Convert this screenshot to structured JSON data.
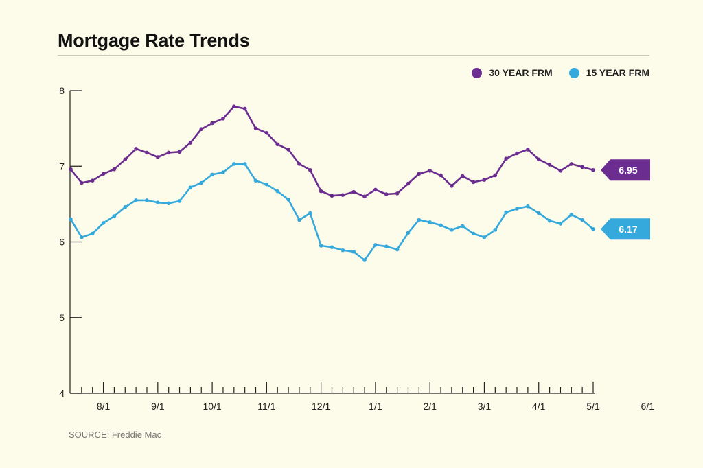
{
  "title": "Mortgage Rate Trends",
  "source": "SOURCE: Freddie Mac",
  "chart_data": {
    "type": "line",
    "title": "Mortgage Rate Trends",
    "xlabel": "",
    "ylabel": "",
    "ylim": [
      4,
      8
    ],
    "yticks": [
      4,
      5,
      6,
      7,
      8
    ],
    "x_tick_labels": [
      {
        "label": "8/1",
        "index": 3
      },
      {
        "label": "9/1",
        "index": 8
      },
      {
        "label": "10/1",
        "index": 13
      },
      {
        "label": "11/1",
        "index": 18
      },
      {
        "label": "12/1",
        "index": 23
      },
      {
        "label": "1/1",
        "index": 28
      },
      {
        "label": "2/1",
        "index": 33
      },
      {
        "label": "3/1",
        "index": 38
      },
      {
        "label": "4/1",
        "index": 43
      },
      {
        "label": "5/1",
        "index": 48
      },
      {
        "label": "6/1",
        "index": 53
      }
    ],
    "legend_position": "top-right",
    "grid": false,
    "series": [
      {
        "name": "30 YEAR FRM",
        "color": "#6b2d90",
        "end_label": "6.95",
        "values": [
          6.96,
          6.78,
          6.81,
          6.9,
          6.96,
          7.09,
          7.23,
          7.18,
          7.12,
          7.18,
          7.19,
          7.31,
          7.49,
          7.57,
          7.63,
          7.79,
          7.76,
          7.5,
          7.44,
          7.29,
          7.22,
          7.03,
          6.95,
          6.67,
          6.61,
          6.62,
          6.66,
          6.6,
          6.69,
          6.63,
          6.64,
          6.77,
          6.9,
          6.94,
          6.88,
          6.74,
          6.87,
          6.79,
          6.82,
          6.88,
          7.1,
          7.17,
          7.22,
          7.09,
          7.02,
          6.94,
          7.03,
          6.99,
          6.95
        ]
      },
      {
        "name": "15 YEAR FRM",
        "color": "#35a9dc",
        "end_label": "6.17",
        "values": [
          6.3,
          6.06,
          6.11,
          6.25,
          6.34,
          6.46,
          6.55,
          6.55,
          6.52,
          6.51,
          6.54,
          6.72,
          6.78,
          6.89,
          6.92,
          7.03,
          7.03,
          6.81,
          6.76,
          6.67,
          6.56,
          6.29,
          6.38,
          5.95,
          5.93,
          5.89,
          5.87,
          5.76,
          5.96,
          5.94,
          5.9,
          6.12,
          6.29,
          6.26,
          6.22,
          6.16,
          6.21,
          6.11,
          6.06,
          6.16,
          6.39,
          6.44,
          6.47,
          6.38,
          6.28,
          6.24,
          6.36,
          6.29,
          6.17
        ]
      }
    ]
  }
}
